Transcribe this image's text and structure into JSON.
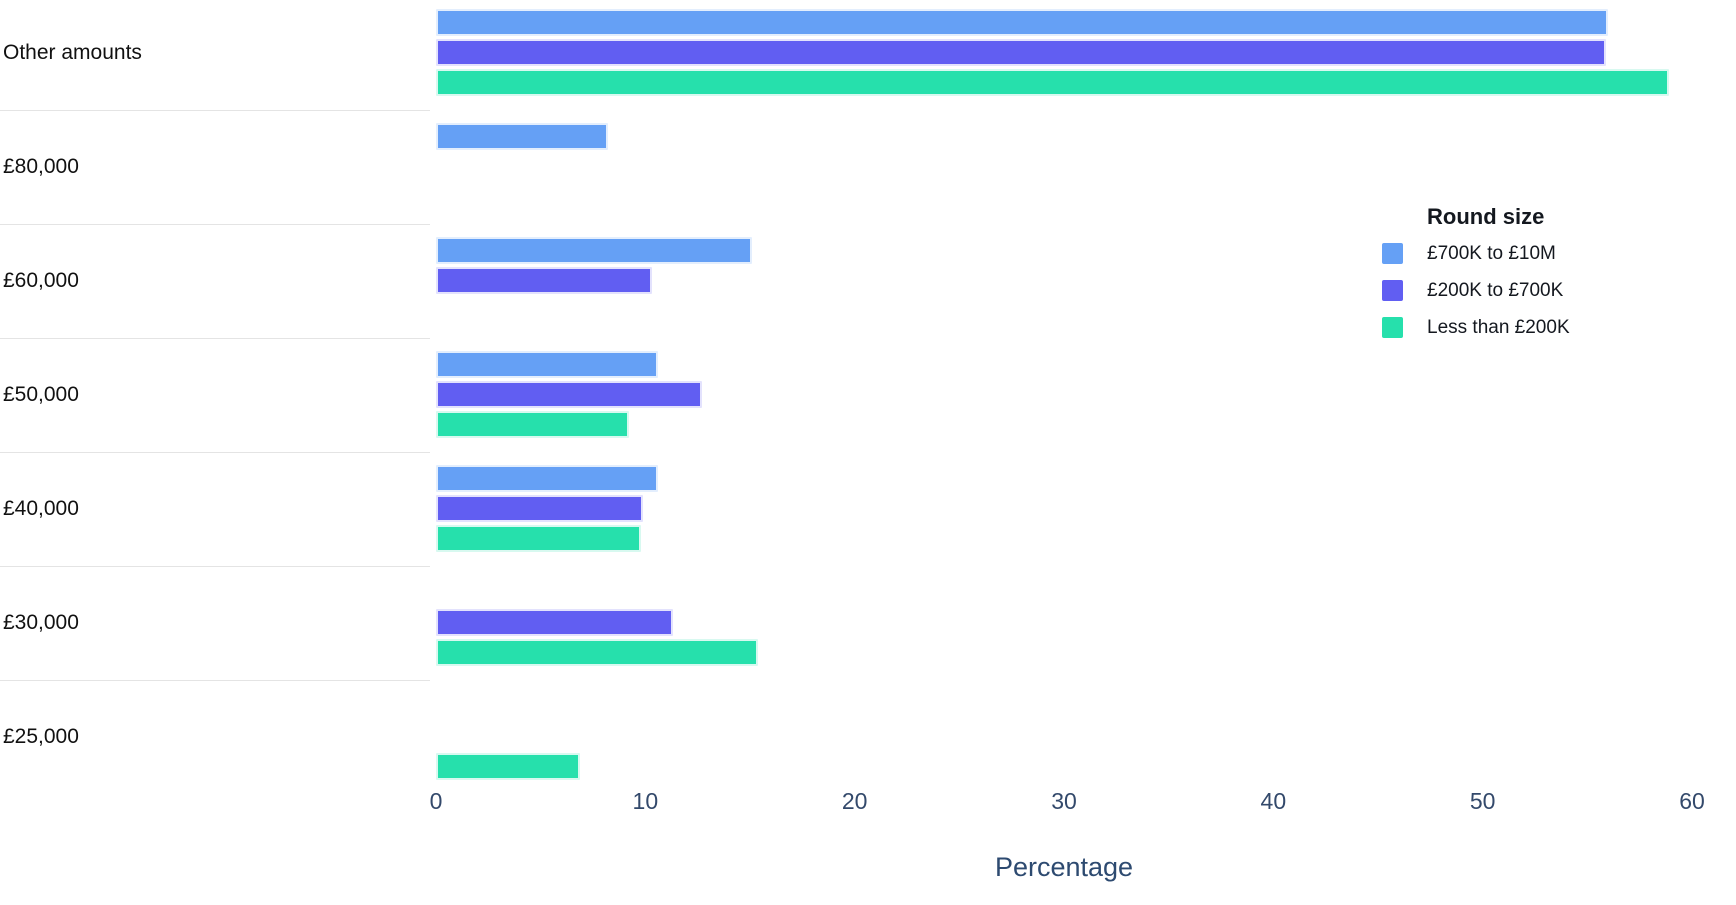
{
  "chart_data": {
    "type": "bar",
    "orientation": "horizontal",
    "xlabel": "Percentage",
    "ylabel": "",
    "xlim": [
      0,
      60
    ],
    "xticks": [
      "0",
      "10",
      "20",
      "30",
      "40",
      "50",
      "60"
    ],
    "grid": false,
    "categories": [
      "Other amounts",
      "£80,000",
      "£60,000",
      "£50,000",
      "£40,000",
      "£30,000",
      "£25,000"
    ],
    "series": [
      {
        "name": "£700K to £10M",
        "color": "#65a0f5",
        "values": [
          56.0,
          8.2,
          15.1,
          10.6,
          10.6,
          null,
          null
        ]
      },
      {
        "name": "£200K to £700K",
        "color": "#615ef2",
        "values": [
          55.9,
          null,
          10.3,
          12.7,
          9.9,
          11.3,
          null
        ]
      },
      {
        "name": "Less than £200K",
        "color": "#26e0ac",
        "values": [
          58.9,
          null,
          null,
          9.2,
          9.8,
          15.4,
          6.9
        ]
      }
    ],
    "legend": {
      "title": "Round size",
      "position": "right"
    }
  },
  "colors": {
    "axis_text": "#33496b",
    "xlabel_text": "#2d4a70",
    "category_text": "#111111",
    "separator": "#e4e4e4",
    "background": "#ffffff"
  }
}
